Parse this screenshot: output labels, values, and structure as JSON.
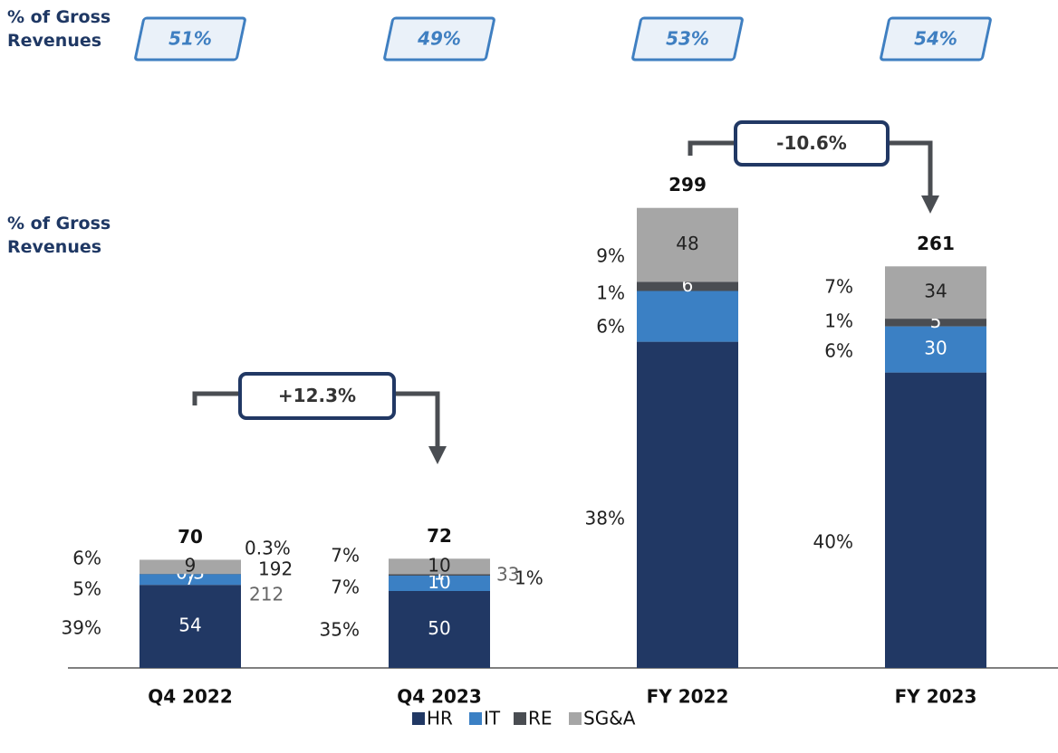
{
  "chart_data": {
    "type": "stacked_bar",
    "categories": [
      "Q4 2022",
      "Q4 2023",
      "FY 2022",
      "FY 2023"
    ],
    "series": [
      {
        "name": "HR",
        "color": "#213864",
        "values": [
          54,
          50,
          212,
          192
        ],
        "shares": [
          39,
          35,
          38,
          40
        ],
        "share_labels": [
          "39%",
          "35%",
          "38%",
          "40%"
        ]
      },
      {
        "name": "IT",
        "color": "#3b80c4",
        "values": [
          7,
          10,
          33,
          30
        ],
        "shares": [
          5,
          7,
          6,
          6
        ],
        "share_labels": [
          "5%",
          "7%",
          "6%",
          "6%"
        ]
      },
      {
        "name": "RE",
        "color": "#4a4d52",
        "values": [
          0.3,
          1,
          6,
          5
        ],
        "shares": [
          0.3,
          1,
          1,
          1
        ],
        "share_labels": [
          "0.3%",
          "1%",
          "1%",
          "1%"
        ]
      },
      {
        "name": "SG&A",
        "color": "#a6a6a6",
        "values": [
          9,
          10,
          48,
          34
        ],
        "shares": [
          6,
          7,
          9,
          7
        ],
        "share_labels": [
          "6%",
          "7%",
          "9%",
          "7%"
        ]
      }
    ],
    "totals": [
      70,
      72,
      299,
      261
    ],
    "gross_revenue_share": {
      "label": "% of Gross Revenues",
      "values": [
        51,
        49,
        53,
        54
      ],
      "value_labels": [
        "51%",
        "49%",
        "53%",
        "54%"
      ]
    },
    "changes": [
      {
        "label": "+12.3%",
        "value": 12.3
      },
      {
        "label": "-10.6%",
        "value": -10.6
      }
    ],
    "ylim": [
      0,
      300
    ]
  }
}
